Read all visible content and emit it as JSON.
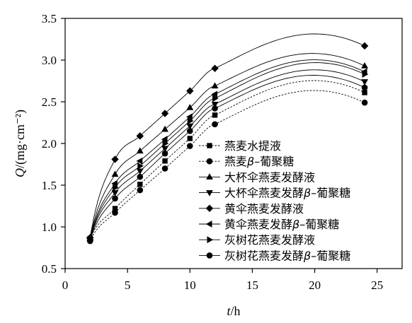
{
  "chart_data": {
    "type": "line",
    "x_label": "t/h",
    "y_label": "Q/(mg·cm⁻²)",
    "xlim": [
      0,
      27
    ],
    "ylim": [
      0.5,
      3.5
    ],
    "x_ticks": [
      "0",
      "5",
      "10",
      "15",
      "20",
      "25"
    ],
    "y_ticks": [
      "0.5",
      "1.0",
      "1.5",
      "2.0",
      "2.5",
      "3.0",
      "3.5"
    ],
    "grid": false,
    "legend_position": "center-right",
    "x": [
      2,
      4,
      6,
      8,
      10,
      12,
      24
    ],
    "series": [
      {
        "name": "燕麦水提液",
        "marker": "square",
        "dash": true,
        "values": [
          0.86,
          1.22,
          1.51,
          1.79,
          2.06,
          2.34,
          2.61
        ]
      },
      {
        "name": "燕麦β–葡聚糖",
        "marker": "circle",
        "dash": true,
        "values": [
          0.83,
          1.17,
          1.44,
          1.7,
          1.97,
          2.23,
          2.49
        ]
      },
      {
        "name": "大杯伞燕麦发酵液",
        "marker": "triangle-up",
        "dash": false,
        "values": [
          0.86,
          1.63,
          1.91,
          2.17,
          2.43,
          2.69,
          2.93
        ]
      },
      {
        "name": "大杯伞燕麦发酵β–葡聚糖",
        "marker": "triangle-down",
        "dash": false,
        "values": [
          0.85,
          1.41,
          1.67,
          1.94,
          2.21,
          2.47,
          2.74
        ]
      },
      {
        "name": "黄伞燕麦发酵液",
        "marker": "diamond",
        "dash": false,
        "values": [
          0.87,
          1.81,
          2.09,
          2.36,
          2.63,
          2.9,
          3.17
        ]
      },
      {
        "name": "黄伞燕麦发酵β–葡聚糖",
        "marker": "triangle-left",
        "dash": false,
        "values": [
          0.86,
          1.52,
          1.79,
          2.05,
          2.32,
          2.59,
          2.86
        ]
      },
      {
        "name": "灰树花燕麦发酵液",
        "marker": "triangle-right",
        "dash": false,
        "values": [
          0.85,
          1.47,
          1.73,
          2.0,
          2.27,
          2.54,
          2.83
        ]
      },
      {
        "name": "灰树花燕麦发酵β–葡聚糖",
        "marker": "circle",
        "dash": false,
        "values": [
          0.84,
          1.34,
          1.6,
          1.88,
          2.15,
          2.42,
          2.67
        ]
      }
    ]
  }
}
